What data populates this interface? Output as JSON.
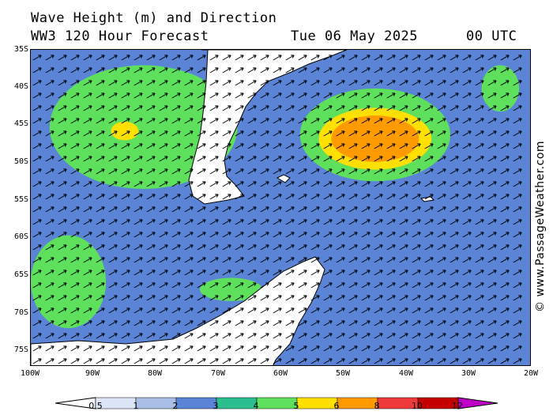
{
  "title": {
    "line1": "Wave Height (m) and Direction",
    "line2_left": "WW3 120 Hour Forecast",
    "date": "Tue 06 May 2025",
    "time": "00 UTC"
  },
  "latitude_labels": [
    "35S",
    "40S",
    "45S",
    "50S",
    "55S",
    "60S",
    "65S",
    "70S",
    "75S"
  ],
  "longitude_labels": [
    "100W",
    "90W",
    "80W",
    "70W",
    "60W",
    "50W",
    "40W",
    "30W",
    "20W"
  ],
  "copyright": "© www.PassageWeather.com",
  "legend": {
    "labels": [
      "0.5",
      "1",
      "2",
      "3",
      "4",
      "5",
      "6",
      "8",
      "10",
      "12"
    ],
    "colors": [
      "#dde6f7",
      "#a9bfe6",
      "#5b84d6",
      "#2bbf8f",
      "#5ee05c",
      "#ffe000",
      "#ff9a00",
      "#ee3a3a",
      "#c40000",
      "#c000c8"
    ]
  },
  "map": {
    "extent": {
      "lon_min": -100,
      "lon_max": -20,
      "lat_min": -76,
      "lat_max": -35
    },
    "land_color": "#ffffff",
    "ocean_base_color": "#5b84d6",
    "blobs": [
      {
        "lon": -82,
        "lat": -45,
        "rx": 15,
        "ry": 8,
        "color": "#5ee05c"
      },
      {
        "lon": -85,
        "lat": -45.5,
        "rx": 2.2,
        "ry": 1.2,
        "color": "#ffe000"
      },
      {
        "lon": -94,
        "lat": -65,
        "rx": 6,
        "ry": 6,
        "color": "#5ee05c"
      },
      {
        "lon": -68,
        "lat": -66,
        "rx": 5,
        "ry": 1.5,
        "color": "#5ee05c"
      },
      {
        "lon": -45,
        "lat": -46,
        "rx": 12,
        "ry": 6,
        "color": "#5ee05c"
      },
      {
        "lon": -45,
        "lat": -46.5,
        "rx": 9,
        "ry": 4,
        "color": "#ffe000"
      },
      {
        "lon": -45,
        "lat": -46.5,
        "rx": 7,
        "ry": 3,
        "color": "#ff9a00"
      },
      {
        "lon": -25,
        "lat": -40,
        "rx": 3,
        "ry": 3,
        "color": "#5ee05c"
      }
    ],
    "arrow_direction_deg": 60
  }
}
